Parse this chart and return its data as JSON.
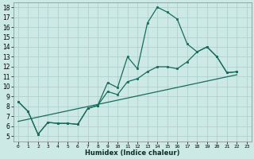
{
  "xlabel": "Humidex (Indice chaleur)",
  "bg_color": "#cce9e5",
  "line_color": "#1a6b5e",
  "grid_color": "#aacfcc",
  "xlim": [
    -0.5,
    23.5
  ],
  "ylim": [
    4.5,
    18.5
  ],
  "xticks": [
    0,
    1,
    2,
    3,
    4,
    5,
    6,
    7,
    8,
    9,
    10,
    11,
    12,
    13,
    14,
    15,
    16,
    17,
    18,
    19,
    20,
    21,
    22,
    23
  ],
  "yticks": [
    5,
    6,
    7,
    8,
    9,
    10,
    11,
    12,
    13,
    14,
    15,
    16,
    17,
    18
  ],
  "line1_x": [
    0,
    1,
    2,
    3,
    4,
    5,
    6,
    7,
    8,
    9,
    10,
    11,
    12,
    13,
    14,
    15,
    16,
    17,
    18,
    19,
    20,
    21,
    22
  ],
  "line1_y": [
    8.5,
    7.5,
    5.2,
    6.4,
    6.3,
    6.3,
    6.2,
    7.8,
    8.1,
    10.4,
    9.9,
    13.0,
    11.8,
    16.4,
    18.0,
    17.5,
    16.8,
    14.3,
    13.5,
    14.0,
    13.0,
    11.4,
    11.5
  ],
  "line2_x": [
    0,
    1,
    2,
    3,
    4,
    5,
    6,
    7,
    8,
    9,
    10,
    11,
    12,
    13,
    14,
    15,
    16,
    17,
    18,
    19,
    20,
    21,
    22
  ],
  "line2_y": [
    8.5,
    7.5,
    5.2,
    6.4,
    6.3,
    6.3,
    6.2,
    7.8,
    8.1,
    9.5,
    9.2,
    10.5,
    10.8,
    11.5,
    12.0,
    12.0,
    11.8,
    12.5,
    13.5,
    14.0,
    13.0,
    11.4,
    11.5
  ],
  "line3_x": [
    0,
    22
  ],
  "line3_y": [
    6.5,
    11.2
  ]
}
